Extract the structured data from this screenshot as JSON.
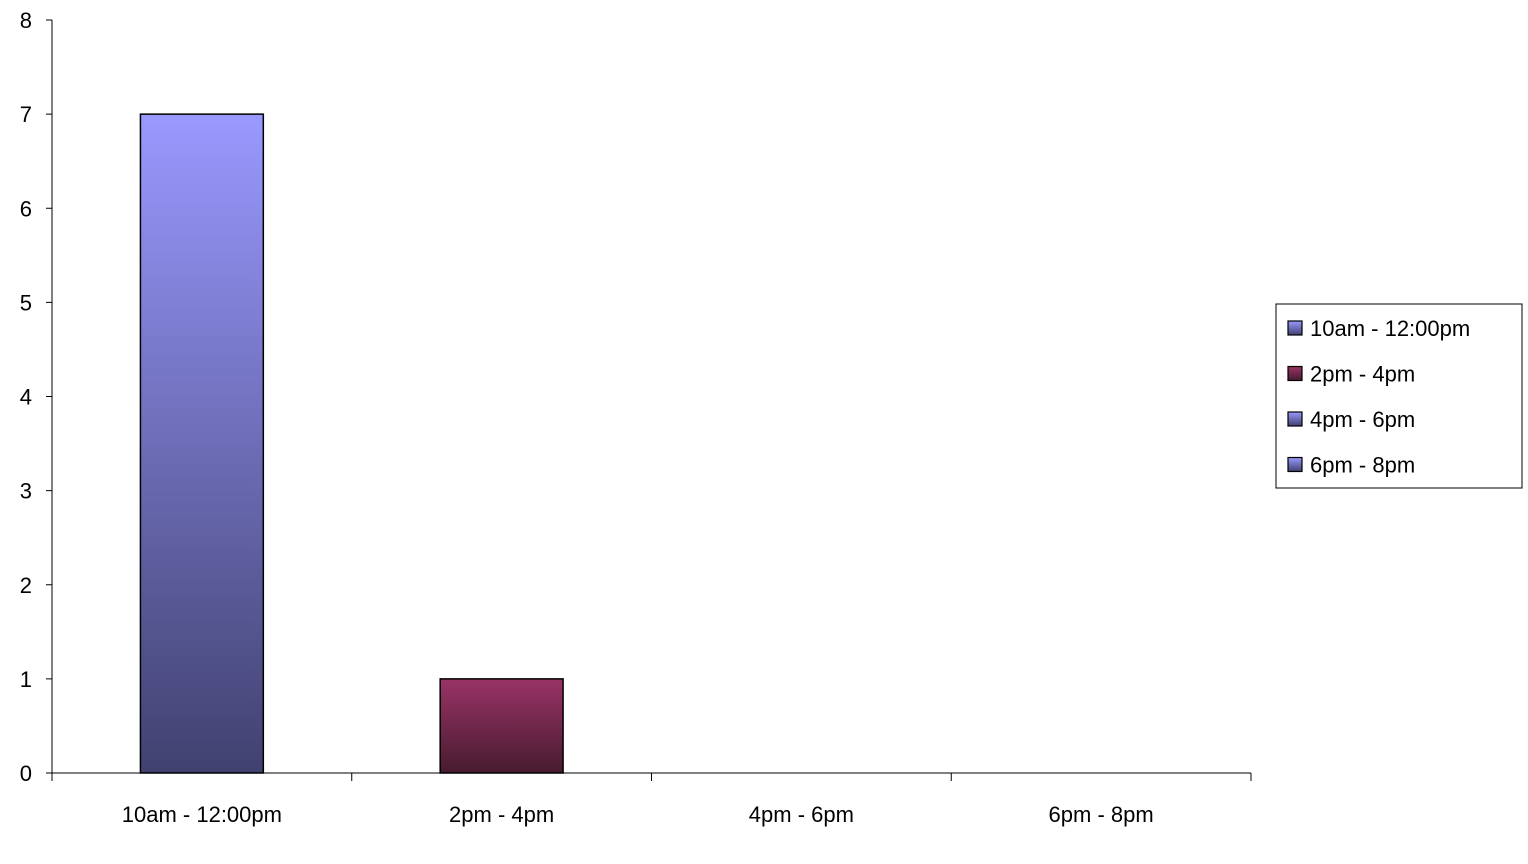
{
  "chart_data": {
    "type": "bar",
    "categories": [
      "10am - 12:00pm",
      "2pm - 4pm",
      "4pm - 6pm",
      "6pm - 8pm"
    ],
    "values": [
      7,
      1,
      0,
      0
    ],
    "title": "",
    "xlabel": "",
    "ylabel": "",
    "ylim": [
      0,
      8
    ],
    "yticks": [
      "0",
      "1",
      "2",
      "3",
      "4",
      "5",
      "6",
      "7",
      "8"
    ],
    "grid": false,
    "legend": {
      "placement": "right",
      "entries": [
        "10am - 12:00pm",
        "2pm - 4pm",
        "4pm - 6pm",
        "6pm - 8pm"
      ]
    },
    "colors": [
      {
        "top": "#9999ff",
        "bottom": "#414170"
      },
      {
        "top": "#993366",
        "bottom": "#471b2f"
      },
      {
        "top": "#9999ff",
        "bottom": "#414170"
      },
      {
        "top": "#9999ff",
        "bottom": "#414170"
      }
    ]
  }
}
